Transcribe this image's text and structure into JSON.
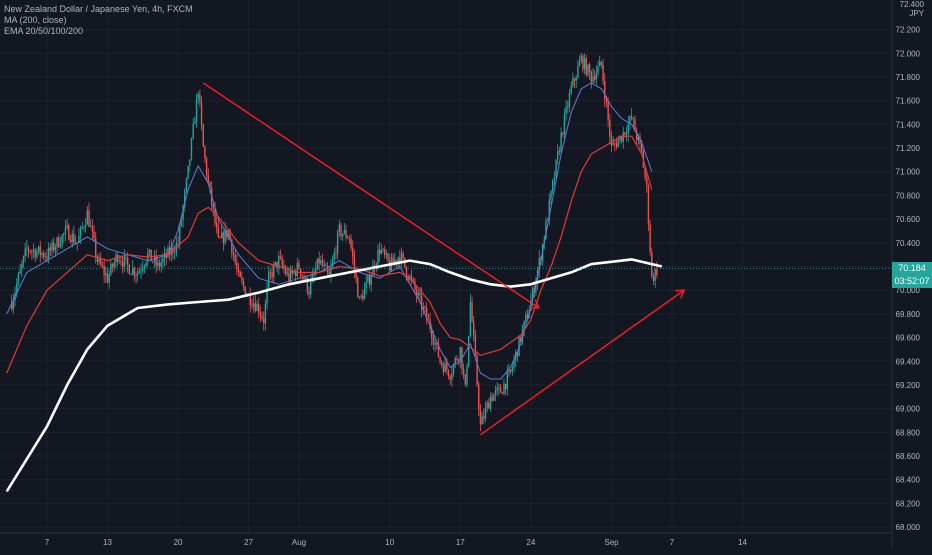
{
  "legend": {
    "symbol": "New Zealand Dollar / Japanese Yen, 4h, FXCM",
    "ma": "MA (200, close)",
    "ema": "EMA 20/50/100/200"
  },
  "axis_currency": "JPY",
  "axis_top_label": "72.400",
  "last_price": "70.184",
  "countdown": "03:52:07",
  "colors": {
    "background": "#131722",
    "up": "#26a69a",
    "down": "#ef5350",
    "ma200": "#ffffff",
    "ema_red": "#e53935",
    "ema_blue": "#5c7fd6",
    "trendline": "#ff1e1e",
    "grid": "#1e222d",
    "axis_text": "#b2b5be"
  },
  "chart_data": {
    "type": "candlestick",
    "title": "New Zealand Dollar / Japanese Yen, 4h, FXCM",
    "ylim": [
      67.95,
      72.45
    ],
    "y_ticks": [
      "68.000",
      "68.200",
      "68.400",
      "68.600",
      "68.800",
      "69.000",
      "69.200",
      "69.400",
      "69.600",
      "69.800",
      "70.000",
      "70.200",
      "70.400",
      "70.600",
      "70.800",
      "71.000",
      "71.200",
      "71.400",
      "71.600",
      "71.800",
      "72.000",
      "72.200"
    ],
    "x_ticks": [
      {
        "label": "7",
        "day": 0
      },
      {
        "label": "13",
        "day": 6
      },
      {
        "label": "20",
        "day": 13
      },
      {
        "label": "27",
        "day": 20
      },
      {
        "label": "Aug",
        "day": 25
      },
      {
        "label": "10",
        "day": 34
      },
      {
        "label": "17",
        "day": 41
      },
      {
        "label": "24",
        "day": 48
      },
      {
        "label": "Sep",
        "day": 56
      },
      {
        "label": "7",
        "day": 62
      },
      {
        "label": "14",
        "day": 69
      }
    ],
    "price_path": [
      [
        -3.5,
        69.9
      ],
      [
        -2,
        70.35
      ],
      [
        0,
        70.3
      ],
      [
        2,
        70.5
      ],
      [
        3,
        70.4
      ],
      [
        4,
        70.65
      ],
      [
        5,
        70.25
      ],
      [
        6,
        70.1
      ],
      [
        7,
        70.3
      ],
      [
        8,
        70.2
      ],
      [
        9,
        70.15
      ],
      [
        10,
        70.3
      ],
      [
        11,
        70.2
      ],
      [
        12,
        70.3
      ],
      [
        13,
        70.4
      ],
      [
        14,
        71.0
      ],
      [
        15,
        71.7
      ],
      [
        15.5,
        71.2
      ],
      [
        16,
        70.9
      ],
      [
        17,
        70.4
      ],
      [
        18,
        70.5
      ],
      [
        19,
        70.1
      ],
      [
        20,
        69.95
      ],
      [
        21,
        69.85
      ],
      [
        21.5,
        69.75
      ],
      [
        22,
        70.1
      ],
      [
        23,
        70.25
      ],
      [
        24,
        70.1
      ],
      [
        25,
        70.2
      ],
      [
        26,
        70.0
      ],
      [
        27,
        70.25
      ],
      [
        28,
        70.1
      ],
      [
        29,
        70.5
      ],
      [
        30,
        70.45
      ],
      [
        31,
        69.9
      ],
      [
        32,
        70.1
      ],
      [
        33,
        70.35
      ],
      [
        34,
        70.2
      ],
      [
        35,
        70.3
      ],
      [
        36,
        70.1
      ],
      [
        37,
        69.9
      ],
      [
        38,
        69.7
      ],
      [
        39,
        69.4
      ],
      [
        40,
        69.3
      ],
      [
        41,
        69.5
      ],
      [
        41.5,
        69.15
      ],
      [
        42,
        69.9
      ],
      [
        42.5,
        69.4
      ],
      [
        43,
        68.85
      ],
      [
        44,
        69.1
      ],
      [
        45,
        69.15
      ],
      [
        46,
        69.3
      ],
      [
        47,
        69.6
      ],
      [
        48,
        69.9
      ],
      [
        49,
        70.3
      ],
      [
        50,
        70.8
      ],
      [
        51,
        71.3
      ],
      [
        52,
        71.7
      ],
      [
        53,
        71.95
      ],
      [
        54,
        71.8
      ],
      [
        55,
        71.9
      ],
      [
        56,
        71.2
      ],
      [
        57,
        71.3
      ],
      [
        58,
        71.45
      ],
      [
        59,
        71.15
      ],
      [
        59.5,
        70.85
      ],
      [
        60,
        70.1
      ],
      [
        60.6,
        70.184
      ]
    ],
    "ma200": [
      [
        -4,
        68.3
      ],
      [
        0,
        68.85
      ],
      [
        2,
        69.2
      ],
      [
        4,
        69.5
      ],
      [
        6,
        69.7
      ],
      [
        9,
        69.85
      ],
      [
        12,
        69.88
      ],
      [
        15,
        69.9
      ],
      [
        18,
        69.92
      ],
      [
        21,
        69.98
      ],
      [
        24,
        70.05
      ],
      [
        27,
        70.1
      ],
      [
        30,
        70.15
      ],
      [
        33,
        70.2
      ],
      [
        36,
        70.25
      ],
      [
        38,
        70.22
      ],
      [
        40,
        70.15
      ],
      [
        42,
        70.09
      ],
      [
        44,
        70.05
      ],
      [
        46,
        70.03
      ],
      [
        48,
        70.05
      ],
      [
        50,
        70.1
      ],
      [
        52,
        70.15
      ],
      [
        54,
        70.22
      ],
      [
        56,
        70.24
      ],
      [
        58,
        70.26
      ],
      [
        60,
        70.22
      ],
      [
        61,
        70.2
      ]
    ],
    "ema_red": [
      [
        -4,
        69.3
      ],
      [
        -2,
        69.7
      ],
      [
        0,
        70.0
      ],
      [
        2,
        70.15
      ],
      [
        4,
        70.3
      ],
      [
        6,
        70.25
      ],
      [
        8,
        70.3
      ],
      [
        10,
        70.28
      ],
      [
        12,
        70.3
      ],
      [
        14,
        70.45
      ],
      [
        15,
        70.65
      ],
      [
        16,
        70.7
      ],
      [
        17,
        70.62
      ],
      [
        19,
        70.4
      ],
      [
        21,
        70.25
      ],
      [
        23,
        70.2
      ],
      [
        25,
        70.15
      ],
      [
        27,
        70.15
      ],
      [
        29,
        70.2
      ],
      [
        31,
        70.18
      ],
      [
        33,
        70.12
      ],
      [
        35,
        70.15
      ],
      [
        36,
        70.1
      ],
      [
        37,
        70.0
      ],
      [
        38,
        69.9
      ],
      [
        39,
        69.72
      ],
      [
        40,
        69.6
      ],
      [
        41,
        69.58
      ],
      [
        43,
        69.45
      ],
      [
        45,
        69.5
      ],
      [
        47,
        69.62
      ],
      [
        48,
        69.75
      ],
      [
        49,
        70.0
      ],
      [
        50,
        70.2
      ],
      [
        51,
        70.45
      ],
      [
        52,
        70.75
      ],
      [
        53,
        71.0
      ],
      [
        54,
        71.15
      ],
      [
        55,
        71.2
      ],
      [
        56,
        71.25
      ],
      [
        57,
        71.3
      ],
      [
        58,
        71.3
      ],
      [
        59,
        71.15
      ],
      [
        60,
        70.85
      ]
    ],
    "ema_blue": [
      [
        -4,
        69.8
      ],
      [
        -2,
        70.15
      ],
      [
        0,
        70.25
      ],
      [
        2,
        70.35
      ],
      [
        4,
        70.45
      ],
      [
        6,
        70.35
      ],
      [
        8,
        70.3
      ],
      [
        10,
        70.25
      ],
      [
        12,
        70.3
      ],
      [
        13,
        70.5
      ],
      [
        14,
        70.85
      ],
      [
        15,
        71.05
      ],
      [
        16,
        70.9
      ],
      [
        17,
        70.6
      ],
      [
        19,
        70.3
      ],
      [
        21,
        70.1
      ],
      [
        23,
        70.05
      ],
      [
        25,
        70.1
      ],
      [
        27,
        70.15
      ],
      [
        29,
        70.25
      ],
      [
        31,
        70.15
      ],
      [
        33,
        70.1
      ],
      [
        35,
        70.2
      ],
      [
        36,
        70.05
      ],
      [
        37,
        69.9
      ],
      [
        38,
        69.7
      ],
      [
        39,
        69.5
      ],
      [
        40,
        69.35
      ],
      [
        41,
        69.4
      ],
      [
        42,
        69.55
      ],
      [
        43,
        69.3
      ],
      [
        44,
        69.25
      ],
      [
        45,
        69.25
      ],
      [
        46,
        69.35
      ],
      [
        47,
        69.55
      ],
      [
        48,
        69.85
      ],
      [
        49,
        70.25
      ],
      [
        50,
        70.7
      ],
      [
        51,
        71.15
      ],
      [
        52,
        71.5
      ],
      [
        53,
        71.7
      ],
      [
        54,
        71.75
      ],
      [
        55,
        71.7
      ],
      [
        56,
        71.55
      ],
      [
        57,
        71.45
      ],
      [
        58,
        71.4
      ],
      [
        59,
        71.25
      ],
      [
        60,
        71.0
      ]
    ],
    "trendlines": [
      {
        "from": [
          15.5,
          71.75
        ],
        "to": [
          48.8,
          69.85
        ],
        "arrow": true
      },
      {
        "from": [
          43,
          68.78
        ],
        "to": [
          63.2,
          70.0
        ],
        "arrow": true
      }
    ],
    "last_price": 70.184,
    "grid": true
  }
}
